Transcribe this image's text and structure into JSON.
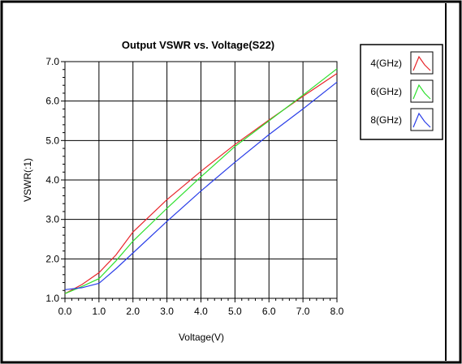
{
  "chart_data": {
    "type": "line",
    "title": "Output VSWR vs. Voltage(S22)",
    "xlabel": "Voltage(V)",
    "ylabel": "VSWR(:1)",
    "xlim": [
      0,
      8
    ],
    "ylim": [
      1,
      7
    ],
    "xticks": [
      "0.0",
      "1.0",
      "2.0",
      "3.0",
      "4.0",
      "5.0",
      "6.0",
      "7.0",
      "8.0"
    ],
    "yticks": [
      "1.0",
      "2.0",
      "3.0",
      "4.0",
      "5.0",
      "6.0",
      "7.0"
    ],
    "grid": true,
    "legend_position": "right",
    "series": [
      {
        "name": "4(GHz)",
        "color": "#e8252a",
        "x": [
          0,
          0.5,
          1,
          1.5,
          2,
          3,
          4,
          5,
          6,
          7,
          8
        ],
        "y": [
          1.12,
          1.35,
          1.65,
          2.1,
          2.68,
          3.5,
          4.22,
          4.9,
          5.52,
          6.12,
          6.7
        ]
      },
      {
        "name": "6(GHz)",
        "color": "#2ee02e",
        "x": [
          0,
          0.5,
          1,
          1.5,
          2,
          3,
          4,
          5,
          6,
          7,
          8
        ],
        "y": [
          1.12,
          1.3,
          1.5,
          1.95,
          2.45,
          3.28,
          4.08,
          4.85,
          5.5,
          6.15,
          6.82
        ]
      },
      {
        "name": "8(GHz)",
        "color": "#2a3ee8",
        "x": [
          0,
          0.5,
          1,
          1.5,
          2,
          3,
          4,
          5,
          6,
          7,
          8
        ],
        "y": [
          1.22,
          1.27,
          1.38,
          1.75,
          2.15,
          2.95,
          3.72,
          4.45,
          5.15,
          5.8,
          6.48
        ]
      }
    ]
  }
}
